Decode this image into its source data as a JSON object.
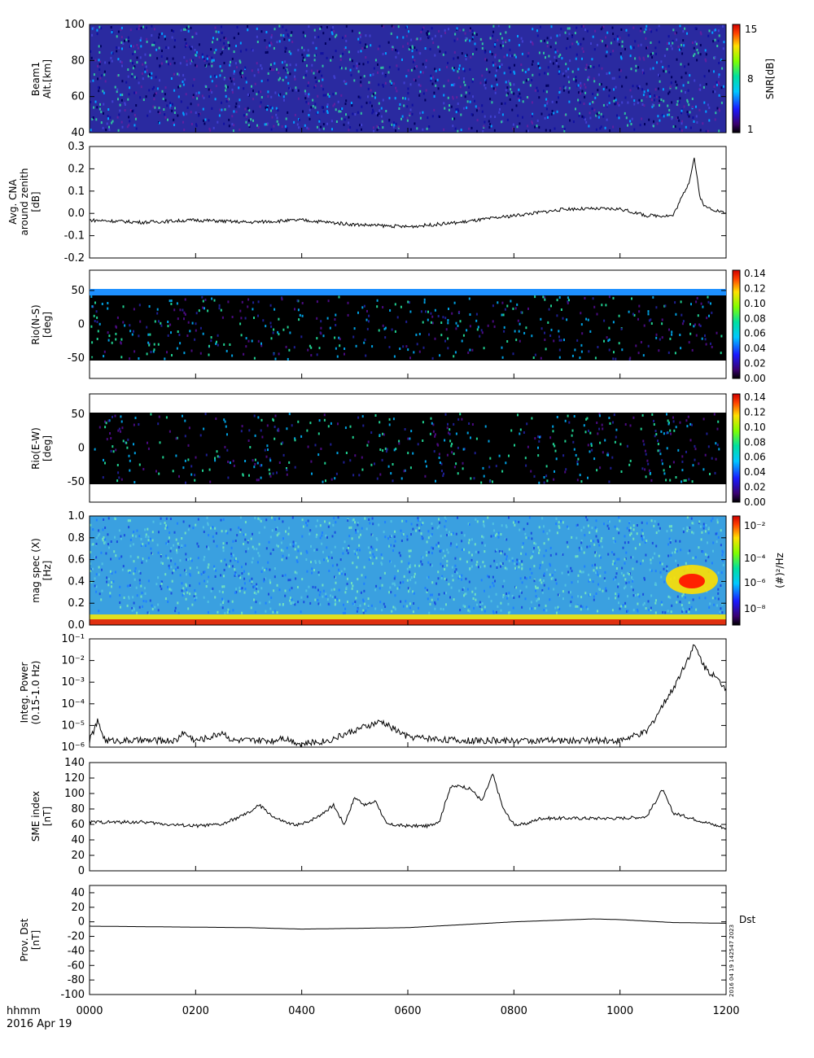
{
  "chart_data": [
    {
      "type": "heatmap",
      "id": "beam1",
      "ylabel": [
        "Beam1",
        "Alt.[km]"
      ],
      "ylim": [
        40,
        100
      ],
      "yticks": [
        40,
        60,
        80,
        100
      ],
      "colorbar": {
        "label": "SNR[dB]",
        "ticks": [
          "1",
          "8",
          "15"
        ],
        "palette": "rainbow"
      }
    },
    {
      "type": "line",
      "id": "cna",
      "ylabel": [
        "Avg. CNA",
        "around zenith",
        "[dB]"
      ],
      "ylim": [
        -0.2,
        0.3
      ],
      "yticks": [
        "0.3",
        "0.2",
        "0.1",
        "0.0",
        "-0.1",
        "-0.2"
      ],
      "series": [
        {
          "x": [
            0,
            100,
            200,
            300,
            400,
            500,
            600,
            700,
            800,
            900,
            1000,
            1050,
            1100,
            1130,
            1140,
            1150,
            1160,
            1200
          ],
          "y": [
            -0.03,
            -0.04,
            -0.03,
            -0.04,
            -0.03,
            -0.05,
            -0.06,
            -0.04,
            -0.01,
            0.02,
            0.02,
            -0.01,
            -0.01,
            0.14,
            0.25,
            0.08,
            0.03,
            0.0
          ]
        }
      ]
    },
    {
      "type": "heatmap",
      "id": "rio_ns",
      "ylabel": [
        "Rio(N-S)",
        "[deg]"
      ],
      "ylim": [
        -80,
        80
      ],
      "yticks": [
        "50",
        "0",
        "-50"
      ],
      "colorbar": {
        "ticks": [
          "0.14",
          "0.12",
          "0.10",
          "0.08",
          "0.06",
          "0.04",
          "0.02",
          "0.00"
        ],
        "palette": "rainbow"
      }
    },
    {
      "type": "heatmap",
      "id": "rio_ew",
      "ylabel": [
        "Rio(E-W)",
        "[deg]"
      ],
      "ylim": [
        -80,
        80
      ],
      "yticks": [
        "50",
        "0",
        "-50"
      ],
      "colorbar": {
        "ticks": [
          "0.14",
          "0.12",
          "0.10",
          "0.08",
          "0.06",
          "0.04",
          "0.02",
          "0.00"
        ],
        "palette": "rainbow"
      }
    },
    {
      "type": "heatmap",
      "id": "magspec",
      "ylabel": [
        "mag spec (X)",
        "[Hz]"
      ],
      "ylim": [
        0,
        1.0
      ],
      "yticks": [
        "0.0",
        "0.2",
        "0.4",
        "0.6",
        "0.8",
        "1.0"
      ],
      "colorbar": {
        "label": "(#)²/Hz",
        "ticks": [
          "10⁻²",
          "10⁻⁴",
          "10⁻⁶",
          "10⁻⁸"
        ],
        "palette": "rainbow"
      }
    },
    {
      "type": "line",
      "id": "integ",
      "ylabel": [
        "Integ. Power",
        "(0.15-1.0 Hz)"
      ],
      "yscale": "log",
      "ylim": [
        1e-06,
        0.1
      ],
      "yticks": [
        "10⁻⁶",
        "10⁻⁵",
        "10⁻⁴",
        "10⁻³",
        "10⁻²",
        "10⁻¹"
      ],
      "series": [
        {
          "x": [
            0,
            15,
            30,
            100,
            165,
            175,
            200,
            230,
            250,
            270,
            300,
            350,
            360,
            400,
            450,
            500,
            550,
            600,
            700,
            800,
            900,
            1000,
            1050,
            1100,
            1140,
            1160,
            1200
          ],
          "y": [
            2e-06,
            1.5e-05,
            2e-06,
            2e-06,
            2e-06,
            5e-06,
            2e-06,
            3e-06,
            5e-06,
            2e-06,
            2e-06,
            2e-06,
            3e-06,
            1.4e-06,
            2e-06,
            6e-06,
            1.5e-05,
            3e-06,
            2e-06,
            2e-06,
            2e-06,
            2e-06,
            5e-06,
            0.0005,
            0.05,
            0.005,
            0.0005
          ]
        }
      ]
    },
    {
      "type": "line",
      "id": "sme",
      "ylabel": [
        "SME index",
        "[nT]"
      ],
      "ylim": [
        0,
        140
      ],
      "yticks": [
        "0",
        "20",
        "40",
        "60",
        "80",
        "100",
        "120",
        "140"
      ],
      "series": [
        {
          "x": [
            0,
            100,
            150,
            200,
            250,
            300,
            320,
            350,
            380,
            400,
            430,
            460,
            480,
            500,
            520,
            540,
            560,
            600,
            640,
            660,
            680,
            700,
            720,
            740,
            760,
            780,
            800,
            820,
            850,
            900,
            1000,
            1050,
            1080,
            1100,
            1150,
            1200
          ],
          "y": [
            63,
            63,
            60,
            58,
            60,
            75,
            85,
            68,
            60,
            60,
            70,
            85,
            60,
            95,
            85,
            90,
            60,
            58,
            58,
            65,
            108,
            110,
            105,
            90,
            125,
            80,
            60,
            60,
            68,
            68,
            68,
            70,
            105,
            75,
            65,
            55
          ]
        }
      ]
    },
    {
      "type": "line",
      "id": "dst",
      "ylabel": [
        "Prov. Dst",
        "[nT]"
      ],
      "ylim": [
        -100,
        50
      ],
      "yticks": [
        "40",
        "20",
        "0",
        "-20",
        "-40",
        "-60",
        "-80",
        "-100"
      ],
      "right_label": "Dst",
      "series": [
        {
          "x": [
            0,
            300,
            400,
            600,
            800,
            950,
            1000,
            1100,
            1200
          ],
          "y": [
            -6,
            -8,
            -10,
            -8,
            0,
            4,
            3,
            -1,
            -2
          ]
        }
      ]
    }
  ],
  "xaxis": {
    "ticks": [
      "0000",
      "0200",
      "0400",
      "0600",
      "0800",
      "1000",
      "1200"
    ],
    "xlim": [
      0,
      1200
    ],
    "label_left": "hhmm",
    "date": "2016 Apr 19"
  },
  "stamp": "2016 04 19 142547 2023"
}
